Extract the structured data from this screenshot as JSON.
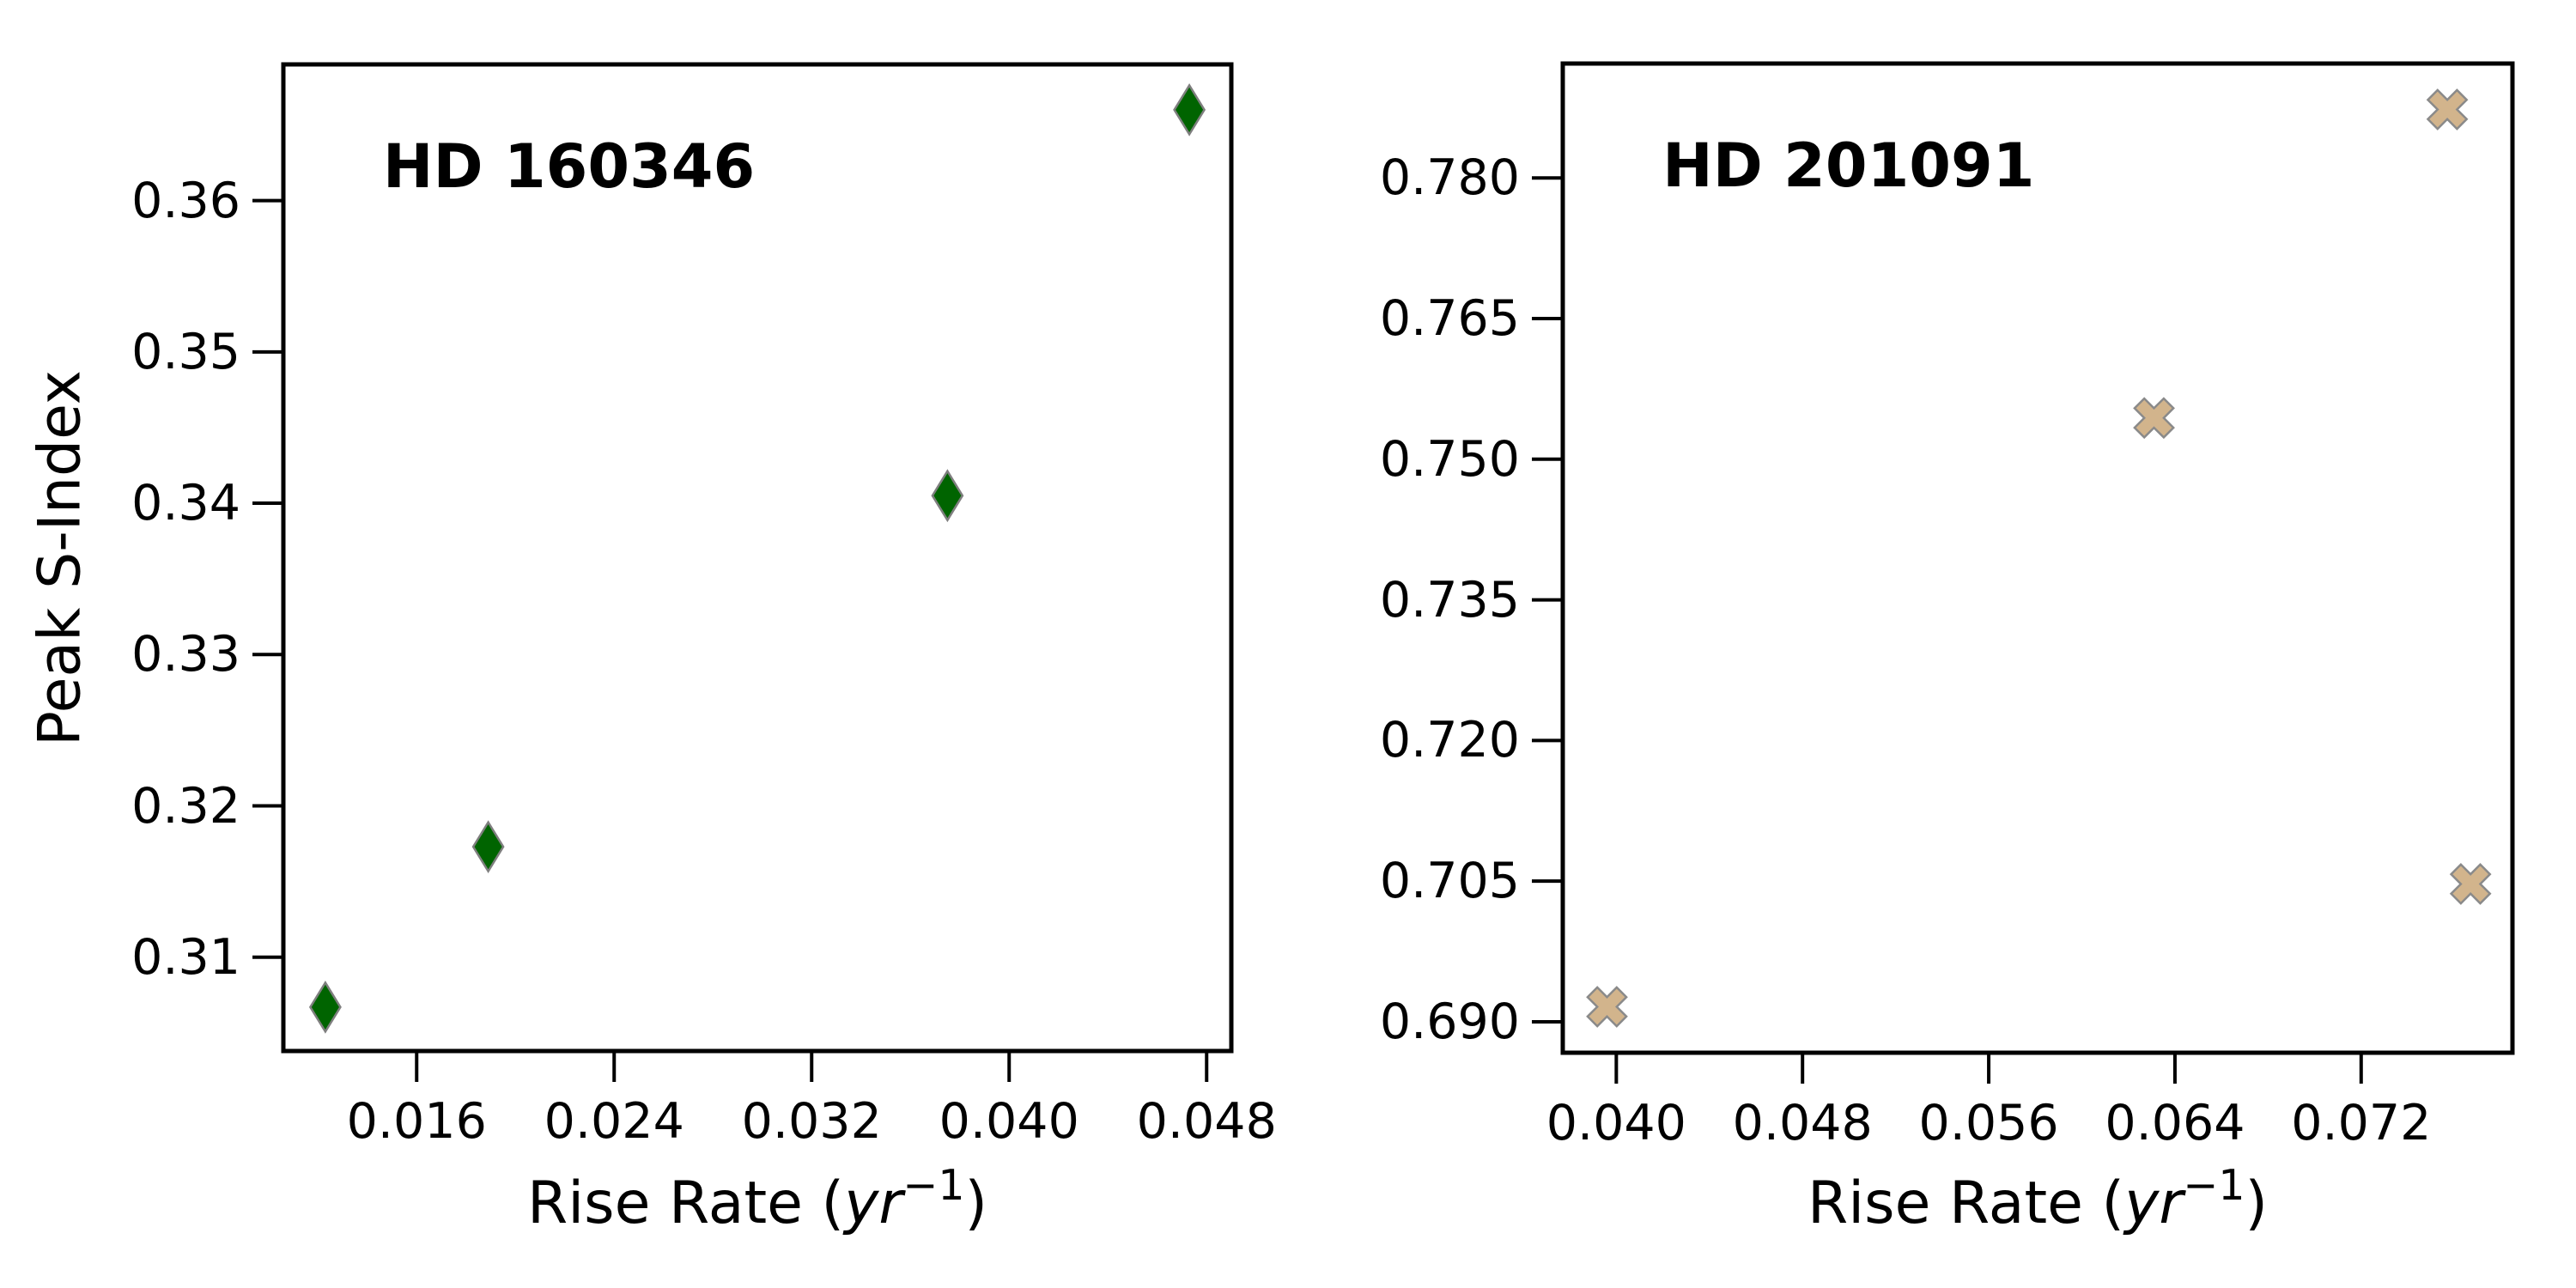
{
  "figure": {
    "background": "#ffffff",
    "shared_ylabel": "Peak S-Index"
  },
  "chart_data": [
    {
      "type": "scatter",
      "label": "HD 160346",
      "marker": "thin-diamond",
      "marker_color": "#006400",
      "marker_edge_color": "#7f7f7f",
      "points": [
        {
          "x": 0.0123,
          "y": 0.3067
        },
        {
          "x": 0.0189,
          "y": 0.3173
        },
        {
          "x": 0.0375,
          "y": 0.3405
        },
        {
          "x": 0.0473,
          "y": 0.366
        }
      ],
      "xlim": [
        0.0106,
        0.049
      ],
      "ylim": [
        0.3038,
        0.369
      ],
      "xtick_values": [
        0.016,
        0.024,
        0.032,
        0.04,
        0.048
      ],
      "xtick_labels": [
        "0.016",
        "0.024",
        "0.032",
        "0.040",
        "0.048"
      ],
      "ytick_values": [
        0.31,
        0.32,
        0.33,
        0.34,
        0.35,
        0.36
      ],
      "ytick_labels": [
        "0.31",
        "0.32",
        "0.33",
        "0.34",
        "0.35",
        "0.36"
      ],
      "xlabel": {
        "prefix": "Rise Rate (",
        "var": "yr",
        "exp": "−1",
        "suffix": ")"
      },
      "ylabel": "Peak S-Index",
      "grid": false,
      "legend": "none"
    },
    {
      "type": "scatter",
      "label": "HD 201091",
      "marker": "x-filled",
      "marker_color": "#D2B48C",
      "marker_edge_color": "#8a8a8a",
      "points": [
        {
          "x": 0.0396,
          "y": 0.6916
        },
        {
          "x": 0.0631,
          "y": 0.7544
        },
        {
          "x": 0.0757,
          "y": 0.7873
        },
        {
          "x": 0.0767,
          "y": 0.7047
        }
      ],
      "xlim": [
        0.0377,
        0.0785
      ],
      "ylim": [
        0.6867,
        0.7922
      ],
      "xtick_values": [
        0.04,
        0.048,
        0.056,
        0.064,
        0.072
      ],
      "xtick_labels": [
        "0.040",
        "0.048",
        "0.056",
        "0.064",
        "0.072"
      ],
      "ytick_values": [
        0.69,
        0.705,
        0.72,
        0.735,
        0.75,
        0.765,
        0.78
      ],
      "ytick_labels": [
        "0.690",
        "0.705",
        "0.720",
        "0.735",
        "0.750",
        "0.765",
        "0.780"
      ],
      "xlabel": {
        "prefix": "Rise Rate (",
        "var": "yr",
        "exp": "−1",
        "suffix": ")"
      },
      "ylabel": "",
      "grid": false,
      "legend": "none"
    }
  ]
}
